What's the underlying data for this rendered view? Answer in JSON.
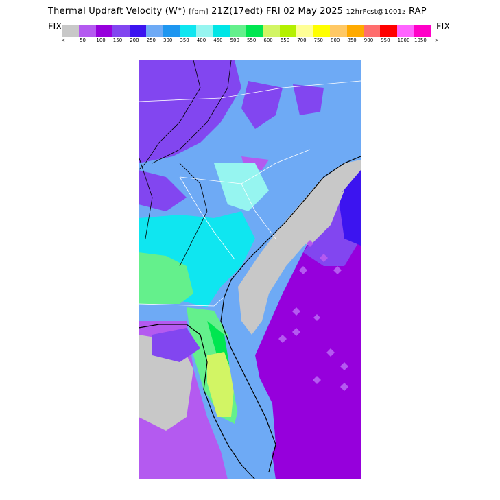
{
  "header": {
    "title_main": "Thermal Updraft Velocity (W*)",
    "title_unit": "[fpm]",
    "title_time": "21Z(17edt) FRI 02 May 2025",
    "title_run": "12hrFcst@1001z",
    "title_model": "RAP"
  },
  "legend": {
    "fix_left": "FIX",
    "fix_right": "FIX",
    "arrow_left": "<",
    "arrow_right": ">",
    "colors": [
      "#c8c8c8",
      "#b45af0",
      "#9600dc",
      "#8246f0",
      "#3c14f0",
      "#6eaaf5",
      "#1e96f0",
      "#0fe6f0",
      "#96f5f0",
      "#00e6e6",
      "#64f08c",
      "#00e650",
      "#d2f564",
      "#b4f000",
      "#ffff96",
      "#ffff00",
      "#ffc864",
      "#ffaa00",
      "#ff6e6e",
      "#ff0000",
      "#ff64ff",
      "#ff00c8"
    ],
    "ticks": [
      "50",
      "100",
      "150",
      "200",
      "250",
      "300",
      "350",
      "400",
      "450",
      "500",
      "550",
      "600",
      "650",
      "700",
      "750",
      "800",
      "850",
      "900",
      "950",
      "1000",
      "1050"
    ]
  }
}
